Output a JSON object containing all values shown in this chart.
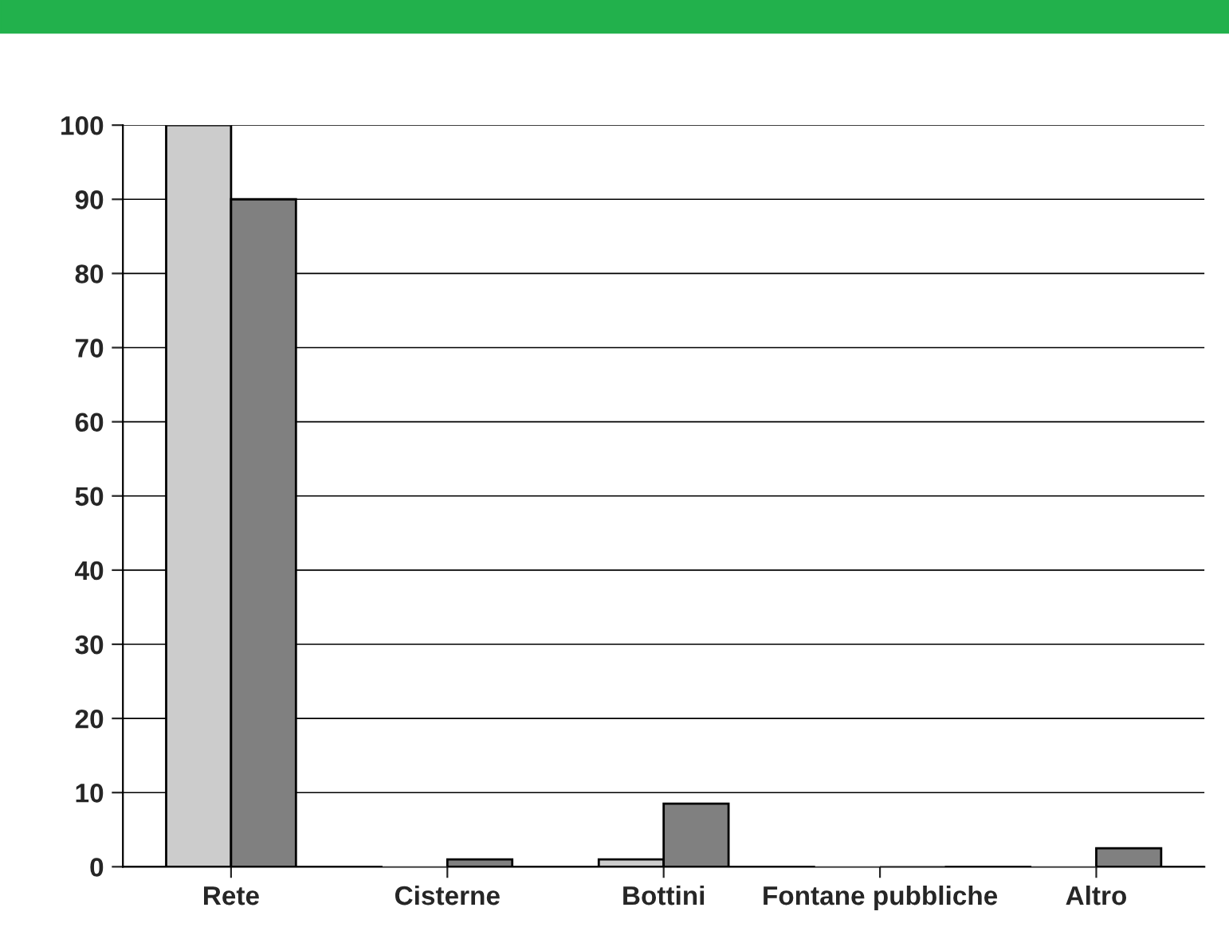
{
  "chart_data": {
    "type": "bar",
    "categories": [
      "Rete",
      "Cisterne",
      "Bottini",
      "Fontane pubbliche",
      "Altro"
    ],
    "series": [
      {
        "color": "#cccccc",
        "values": [
          100,
          0,
          1,
          0,
          0
        ]
      },
      {
        "color": "#808080",
        "values": [
          90,
          1,
          8.5,
          0,
          2.5
        ]
      }
    ],
    "ylim": [
      0,
      100
    ],
    "yticks": [
      0,
      10,
      20,
      30,
      40,
      50,
      60,
      70,
      80,
      90,
      100
    ],
    "grid": "y"
  }
}
